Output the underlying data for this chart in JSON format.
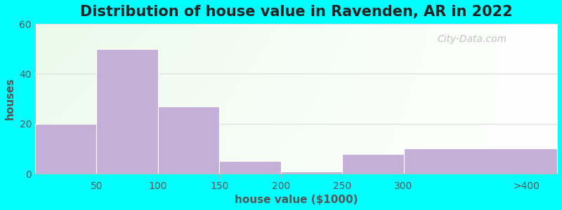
{
  "title": "Distribution of house value in Ravenden, AR in 2022",
  "xlabel": "house value ($1000)",
  "ylabel": "houses",
  "background_outer": "#00FFFF",
  "bar_color": "#c4afd8",
  "bar_edgecolor": "#ffffff",
  "values": [
    20,
    50,
    27,
    5,
    1,
    8,
    10
  ],
  "bin_edges": [
    0,
    50,
    100,
    150,
    200,
    250,
    300,
    425
  ],
  "ylim": [
    0,
    60
  ],
  "yticks": [
    0,
    20,
    40,
    60
  ],
  "xtick_positions": [
    50,
    100,
    150,
    200,
    250,
    300,
    400
  ],
  "xtick_labels": [
    "50",
    "100",
    "150",
    "200",
    "250",
    "300",
    ">400"
  ],
  "title_fontsize": 15,
  "axis_label_fontsize": 11,
  "tick_fontsize": 10,
  "watermark_text": "City-Data.com",
  "figsize": [
    8.0,
    3.0
  ],
  "dpi": 100
}
